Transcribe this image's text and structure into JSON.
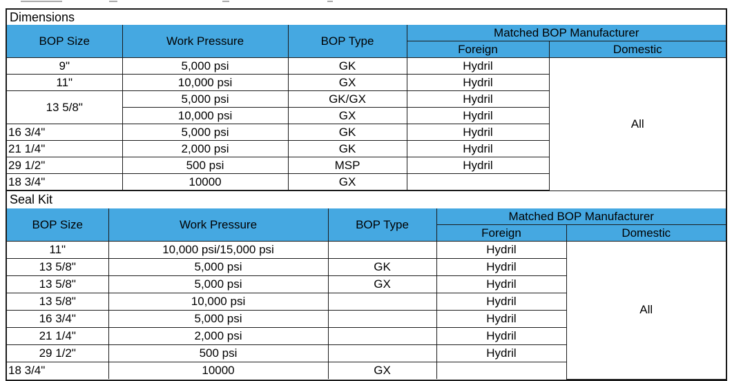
{
  "document": {
    "header_fill": "#45a8e1",
    "border_color": "#1a1a1a",
    "text_color": "#000000",
    "background": "#ffffff"
  },
  "column_headers": {
    "bop_size": "BOP Size",
    "work_pressure": "Work Pressure",
    "bop_type": "BOP Type",
    "matched": "Matched BOP Manufacturer",
    "foreign": "Foreign",
    "domestic": "Domestic"
  },
  "sections": [
    {
      "title": "Dimensions",
      "rows": [
        {
          "size": "9\"",
          "pressure": "5,000 psi",
          "type": "GK",
          "foreign": "Hydril",
          "domestic": "All",
          "domestic_rowspan": 8
        },
        {
          "size": "11\"",
          "pressure": "10,000 psi",
          "type": "GX",
          "foreign": "Hydril"
        },
        {
          "size": "13 5/8\"",
          "size_rowspan": 2,
          "pressure": "5,000 psi",
          "type": "GK/GX",
          "foreign": "Hydril"
        },
        {
          "pressure": "10,000 psi",
          "type": "GX",
          "foreign": "Hydril"
        },
        {
          "size": "16 3/4\"",
          "size_align": "left",
          "pressure": "5,000 psi",
          "type": "GK",
          "foreign": "Hydril"
        },
        {
          "size": "21 1/4\"",
          "size_align": "left",
          "pressure": "2,000 psi",
          "type": "GK",
          "foreign": "Hydril"
        },
        {
          "size": "29 1/2\"",
          "size_align": "left",
          "pressure": "500 psi",
          "type": "MSP",
          "foreign": "Hydril"
        },
        {
          "size": "18 3/4\"",
          "size_align": "left",
          "pressure": "10000",
          "type": "GX",
          "foreign": ""
        }
      ]
    },
    {
      "title": "Seal Kit",
      "rows": [
        {
          "size": "11\"",
          "pressure": "10,000 psi/15,000 psi",
          "type": "",
          "foreign": "Hydril",
          "domestic": "All",
          "domestic_rowspan": 8
        },
        {
          "size": "13 5/8\"",
          "pressure": "5,000 psi",
          "type": "GK",
          "foreign": "Hydril"
        },
        {
          "size": "13 5/8\"",
          "pressure": "5,000 psi",
          "type": "GX",
          "foreign": "Hydril"
        },
        {
          "size": "13 5/8\"",
          "pressure": "10,000 psi",
          "type": "",
          "foreign": "Hydril"
        },
        {
          "size": "16 3/4\"",
          "pressure": "5,000 psi",
          "type": "",
          "foreign": "Hydril"
        },
        {
          "size": "21 1/4\"",
          "pressure": "2,000 psi",
          "type": "",
          "foreign": "Hydril"
        },
        {
          "size": "29 1/2\"",
          "pressure": "500 psi",
          "type": "",
          "foreign": "Hydril"
        },
        {
          "size": "18 3/4\"",
          "size_align": "left",
          "pressure": "10000",
          "type": "GX",
          "foreign": ""
        }
      ]
    }
  ]
}
